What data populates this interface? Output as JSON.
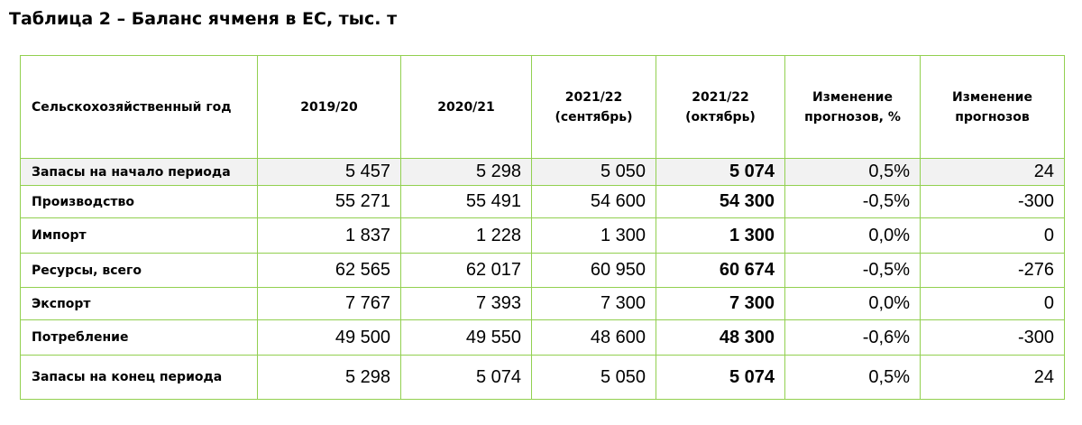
{
  "title": "Таблица 2 – Баланс ячменя в ЕС, тыс. т",
  "table": {
    "headers": [
      "Сельскохозяйственный год",
      "2019/20",
      "2020/21",
      "2021/22\n(сентябрь)",
      "2021/22\n(октябрь)",
      "Изменение\nпрогнозов, %",
      "Изменение\nпрогнозов"
    ],
    "rows": [
      {
        "label": "Запасы на начало периода",
        "values": [
          "5 457",
          "5 298",
          "5 050",
          "5 074",
          "0,5%",
          "24"
        ]
      },
      {
        "label": "Производство",
        "values": [
          "55 271",
          "55 491",
          "54 600",
          "54 300",
          "-0,5%",
          "-300"
        ]
      },
      {
        "label": "Импорт",
        "values": [
          "1 837",
          "1 228",
          "1 300",
          "1 300",
          "0,0%",
          "0"
        ]
      },
      {
        "label": "Ресурсы, всего",
        "values": [
          "62 565",
          "62 017",
          "60 950",
          "60 674",
          "-0,5%",
          "-276"
        ]
      },
      {
        "label": "Экспорт",
        "values": [
          "7 767",
          "7 393",
          "7 300",
          "7 300",
          "0,0%",
          "0"
        ]
      },
      {
        "label": "Потребление",
        "values": [
          "49 500",
          "49 550",
          "48 600",
          "48 300",
          "-0,6%",
          "-300"
        ]
      },
      {
        "label": "Запасы на конец периода",
        "values": [
          "5 298",
          "5 074",
          "5 050",
          "5 074",
          "0,5%",
          "24"
        ]
      }
    ]
  },
  "colors": {
    "border": "#92D050",
    "first_row_fill": "#F2F2F2"
  }
}
